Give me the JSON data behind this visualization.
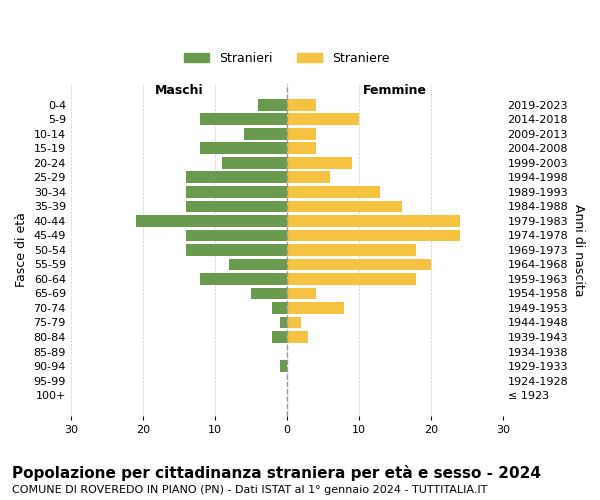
{
  "age_groups": [
    "100+",
    "95-99",
    "90-94",
    "85-89",
    "80-84",
    "75-79",
    "70-74",
    "65-69",
    "60-64",
    "55-59",
    "50-54",
    "45-49",
    "40-44",
    "35-39",
    "30-34",
    "25-29",
    "20-24",
    "15-19",
    "10-14",
    "5-9",
    "0-4"
  ],
  "birth_years": [
    "≤ 1923",
    "1924-1928",
    "1929-1933",
    "1934-1938",
    "1939-1943",
    "1944-1948",
    "1949-1953",
    "1954-1958",
    "1959-1963",
    "1964-1968",
    "1969-1973",
    "1974-1978",
    "1979-1983",
    "1984-1988",
    "1989-1993",
    "1994-1998",
    "1999-2003",
    "2004-2008",
    "2009-2013",
    "2014-2018",
    "2019-2023"
  ],
  "maschi": [
    0,
    0,
    1,
    0,
    2,
    1,
    2,
    5,
    12,
    8,
    14,
    14,
    21,
    14,
    14,
    14,
    9,
    12,
    6,
    12,
    4
  ],
  "femmine": [
    0,
    0,
    0,
    0,
    3,
    2,
    8,
    4,
    18,
    20,
    18,
    24,
    24,
    16,
    13,
    6,
    9,
    4,
    4,
    10,
    4
  ],
  "maschi_color": "#6a9a4e",
  "femmine_color": "#f5c242",
  "background_color": "#ffffff",
  "grid_color": "#cccccc",
  "dashed_line_color": "#999999",
  "xlim": 30,
  "title": "Popolazione per cittadinanza straniera per età e sesso - 2024",
  "subtitle": "COMUNE DI ROVEREDO IN PIANO (PN) - Dati ISTAT al 1° gennaio 2024 - TUTTITALIA.IT",
  "ylabel_left": "Fasce di età",
  "ylabel_right": "Anni di nascita",
  "xlabel_maschi": "Maschi",
  "xlabel_femmine": "Femmine",
  "legend_maschi": "Stranieri",
  "legend_femmine": "Straniere",
  "title_fontsize": 11,
  "subtitle_fontsize": 8,
  "axis_label_fontsize": 9,
  "tick_fontsize": 8
}
